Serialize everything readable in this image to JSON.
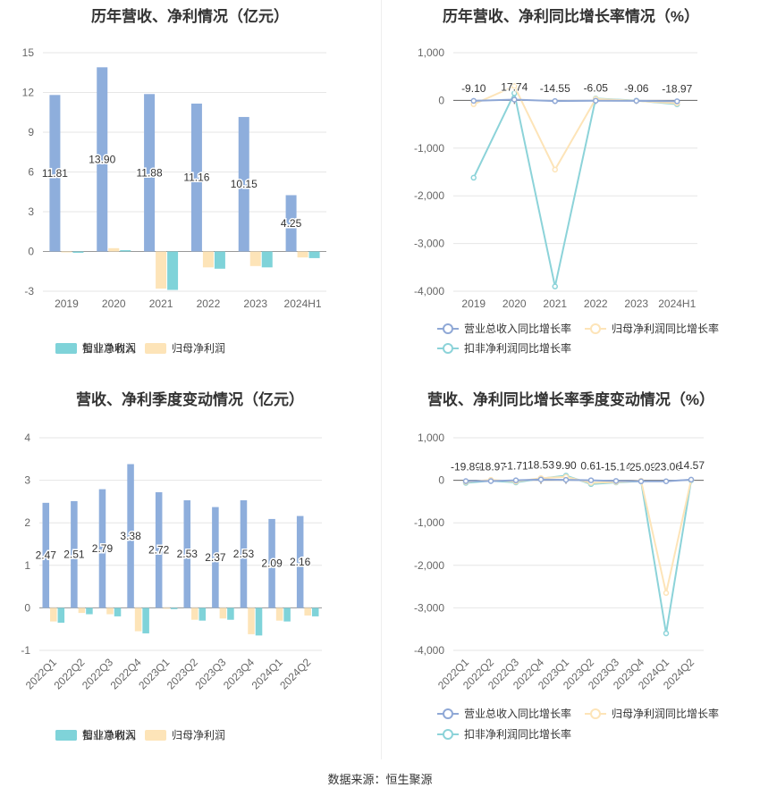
{
  "footer": "数据来源：恒生聚源",
  "colors": {
    "revenue": "#8eaedc",
    "net_profit": "#fde4b8",
    "deducted_profit": "#7fd3d9",
    "rev_line": "#8fa8d6",
    "np_line": "#fde4b8",
    "dp_line": "#8cd3d9",
    "grid": "#e6e6e6",
    "axis_text": "#666666"
  },
  "chart_data": [
    {
      "type": "bar",
      "title": "历年营收、净利情况（亿元）",
      "categories": [
        "2019",
        "2020",
        "2021",
        "2022",
        "2023",
        "2024H1"
      ],
      "ylim": [
        -3,
        15
      ],
      "yticks": [
        -3,
        0,
        3,
        6,
        9,
        12,
        15
      ],
      "series": [
        {
          "name": "营业总收入",
          "values": [
            11.81,
            13.9,
            11.88,
            11.16,
            10.15,
            4.25
          ],
          "labels": [
            "11.81",
            "13.90",
            "11.88",
            "11.16",
            "10.15",
            "4.25"
          ]
        },
        {
          "name": "归母净利润",
          "values": [
            -0.05,
            0.25,
            -2.8,
            -1.2,
            -1.1,
            -0.45
          ]
        },
        {
          "name": "扣非净利润",
          "values": [
            -0.1,
            0.1,
            -2.9,
            -1.3,
            -1.2,
            -0.5
          ]
        }
      ],
      "legend": "bottom"
    },
    {
      "type": "line",
      "title": "历年营收、净利同比增长率情况（%）",
      "categories": [
        "2019",
        "2020",
        "2021",
        "2022",
        "2023",
        "2024H1"
      ],
      "ylim": [
        -4000,
        1000
      ],
      "yticks": [
        -4000,
        -3000,
        -2000,
        -1000,
        0,
        1000
      ],
      "ytick_labels": [
        "-4,000",
        "-3,000",
        "-2,000",
        "-1,000",
        "0",
        "1,000"
      ],
      "series": [
        {
          "name": "营业总收入同比增长率",
          "values": [
            -9.1,
            17.74,
            -14.55,
            -6.05,
            -9.06,
            -18.97
          ],
          "labels": [
            "-9.10",
            "17.74",
            "-14.55",
            "-6.05",
            "-9.06",
            "-18.97"
          ]
        },
        {
          "name": "归母净利润同比增长率",
          "values": [
            -80,
            300,
            -1450,
            30,
            -10,
            -60
          ]
        },
        {
          "name": "扣非净利润同比增长率",
          "values": [
            -1620,
            150,
            -3900,
            40,
            -5,
            -80
          ]
        }
      ],
      "legend": "bottom"
    },
    {
      "type": "bar",
      "title": "营收、净利季度变动情况（亿元）",
      "categories": [
        "2022Q1",
        "2022Q2",
        "2022Q3",
        "2022Q4",
        "2023Q1",
        "2023Q2",
        "2023Q3",
        "2023Q4",
        "2024Q1",
        "2024Q2"
      ],
      "ylim": [
        -1,
        4
      ],
      "yticks": [
        -1,
        0,
        1,
        2,
        3,
        4
      ],
      "series": [
        {
          "name": "营业总收入",
          "values": [
            2.47,
            2.51,
            2.79,
            3.38,
            2.72,
            2.53,
            2.37,
            2.53,
            2.09,
            2.16
          ],
          "labels": [
            "2.47",
            "2.51",
            "2.79",
            "3.38",
            "2.72",
            "2.53",
            "2.37",
            "2.53",
            "2.09",
            "2.16"
          ]
        },
        {
          "name": "归母净利润",
          "values": [
            -0.32,
            -0.12,
            -0.15,
            -0.55,
            -0.02,
            -0.28,
            -0.25,
            -0.62,
            -0.3,
            -0.18
          ]
        },
        {
          "name": "扣非净利润",
          "values": [
            -0.35,
            -0.15,
            -0.2,
            -0.6,
            -0.03,
            -0.3,
            -0.28,
            -0.65,
            -0.32,
            -0.2
          ]
        }
      ],
      "legend": "bottom"
    },
    {
      "type": "line",
      "title": "营收、净利同比增长率季度变动情况（%）",
      "categories": [
        "2022Q1",
        "2022Q2",
        "2022Q3",
        "2022Q4",
        "2023Q1",
        "2023Q2",
        "2023Q3",
        "2023Q4",
        "2024Q1",
        "2024Q2"
      ],
      "ylim": [
        -4000,
        1000
      ],
      "yticks": [
        -4000,
        -3000,
        -2000,
        -1000,
        0,
        1000
      ],
      "ytick_labels": [
        "-4,000",
        "-3,000",
        "-2,000",
        "-1,000",
        "0",
        "1,000"
      ],
      "series": [
        {
          "name": "营业总收入同比增长率",
          "values": [
            -19.8,
            -18.97,
            -1.71,
            18.53,
            9.9,
            0.61,
            -15.14,
            -25.08,
            -23.06,
            14.57
          ],
          "labels": [
            "-19.80",
            "-18.97",
            "-1.71",
            "18.53",
            "9.90",
            "0.61",
            "-15.14",
            "-25.08",
            "-23.06",
            "14.57"
          ]
        },
        {
          "name": "归母净利润同比增长率",
          "values": [
            -40,
            10,
            -30,
            50,
            80,
            -60,
            -40,
            -10,
            -2650,
            10
          ]
        },
        {
          "name": "扣非净利润同比增长率",
          "values": [
            -60,
            -10,
            -50,
            40,
            110,
            -90,
            -50,
            -20,
            -3600,
            0
          ]
        }
      ],
      "legend": "bottom"
    }
  ]
}
